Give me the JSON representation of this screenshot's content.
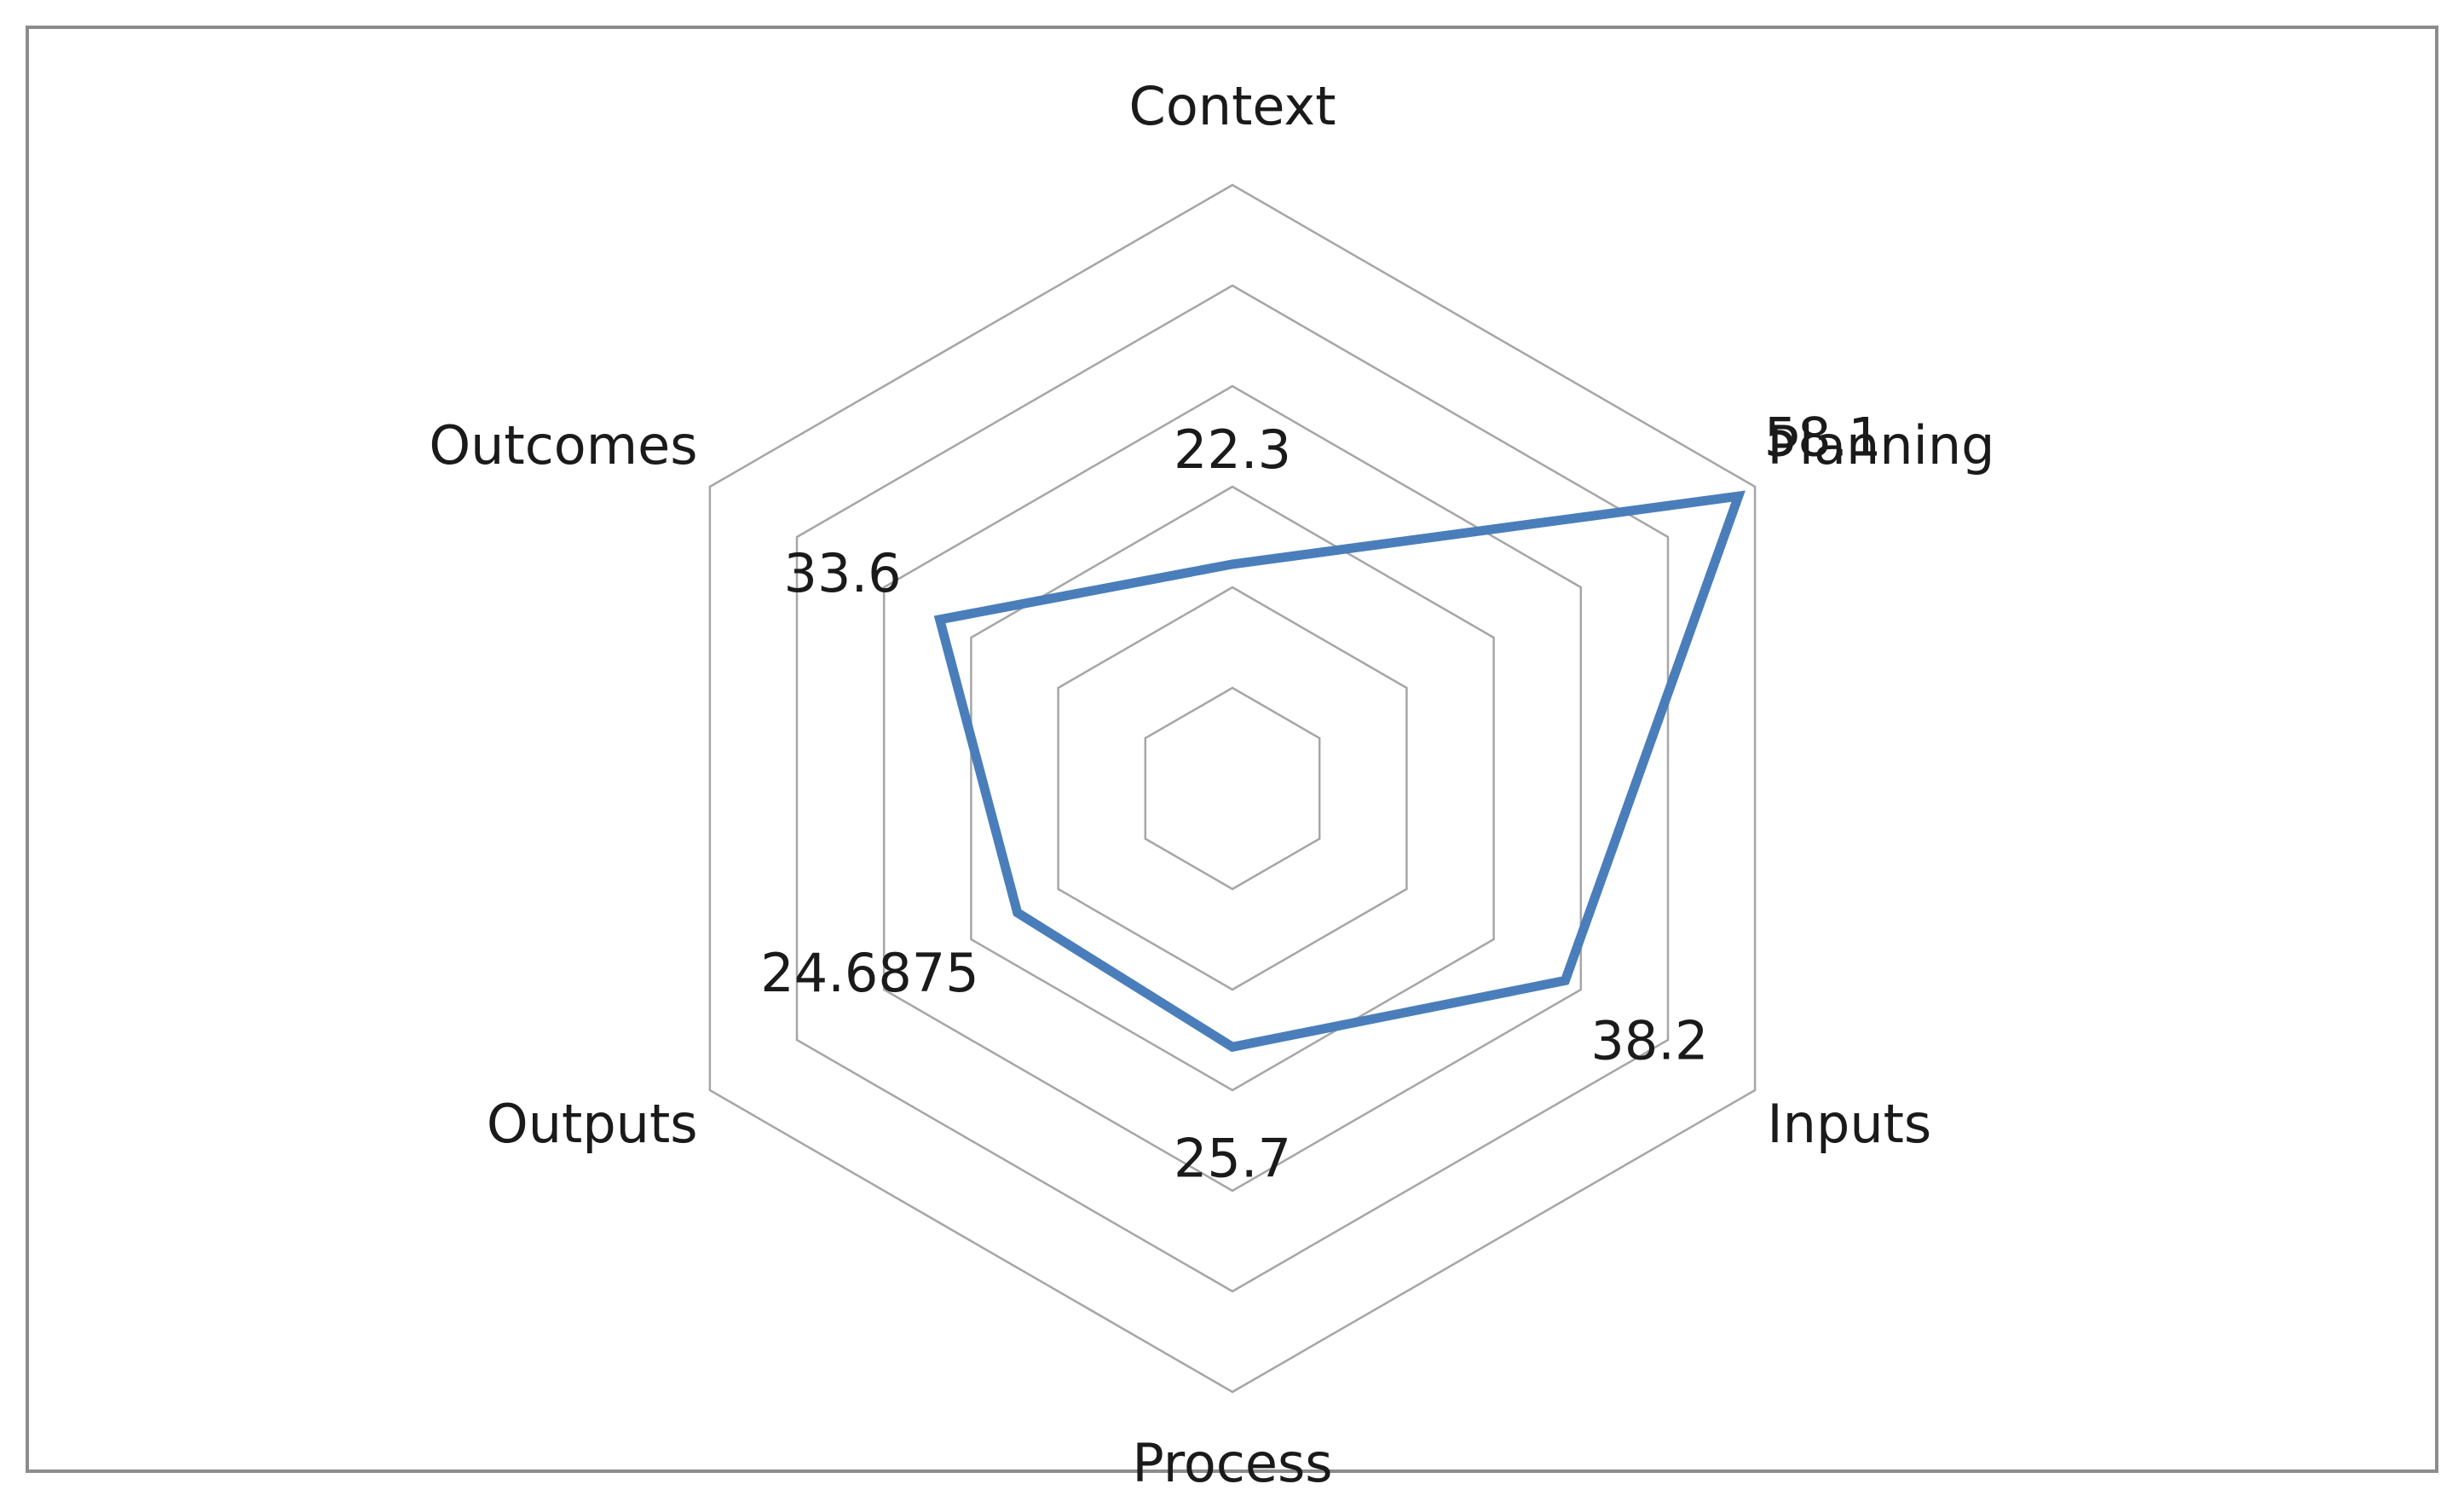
{
  "chart_data": {
    "type": "radar",
    "categories": [
      "Context",
      "Planning",
      "Inputs",
      "Process",
      "Outputs",
      "Outcomes"
    ],
    "series": [
      {
        "values": [
          22.3,
          58.1,
          38.2,
          25.7,
          24.6875,
          33.6
        ],
        "value_labels": [
          "22.3",
          "58.1",
          "38.2",
          "25.7",
          "24.6875",
          "33.6"
        ],
        "color": "#4a7ebb"
      }
    ],
    "rlim": [
      0,
      60
    ],
    "ring_step": 10,
    "grid": true,
    "legend": false,
    "title": ""
  }
}
